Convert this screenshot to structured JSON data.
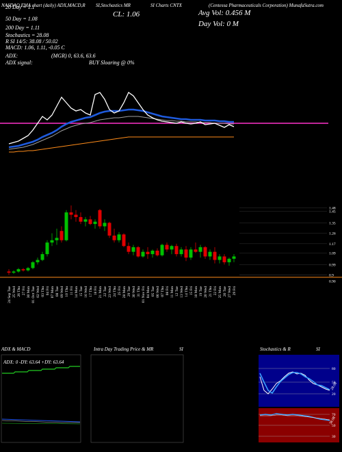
{
  "header": {
    "title_left": "NASDAQ EMA chart (daily) ADX,MACD,R",
    "title_mid": "SI,Stochastics MR",
    "title_mid2": "SI Charts CNTX",
    "title_right": "(Centessa Pharmaceuticals Corporation) MunafaSutra.com",
    "close": "CL: 1.06",
    "avg_vol": "Avg Vol: 0.456  M",
    "day_vol": "Day Vol: 0  M"
  },
  "stats": [
    "20 Day = 1.1",
    "50 Day = 1.08",
    "200 Day = 1.11",
    "Stochastics = 28.08",
    "R SI 14/5: 38.08 / 50.02",
    "MACD: 1.06, 1.11, -0.05 C",
    "ADX:",
    "(MGR) 0, 63.6, 63.6",
    "ADX  signal:",
    "BUY Sloaring @ 0%"
  ],
  "chart_data": [
    {
      "type": "candlestick",
      "categories": [
        "24 Sep Tue",
        "25 Wed",
        "26 Thu",
        "27 Fri",
        "30 Mon",
        "01 Oct Tue",
        "02 Wed",
        "03 Thu",
        "04 Fri",
        "07 Mon",
        "08 Tue",
        "09 Wed",
        "10 Thu",
        "11 Fri",
        "14 Mon",
        "15 Tue",
        "16 Wed",
        "17 Thu",
        "18 Fri",
        "21 Mon",
        "22 Tue",
        "23 Wed",
        "24 Thu",
        "25 Fri",
        "28 Mon",
        "29 Tue",
        "30 Wed",
        "31 Thu",
        "01 Nov Fri",
        "04 Mon",
        "05 Tue",
        "06 Wed",
        "07 Thu",
        "08 Fri",
        "11 Mon",
        "12 Tue",
        "13 Wed",
        "14 Thu",
        "15 Fri",
        "18 Mon",
        "19 Tue",
        "20 Wed",
        "21 Thu",
        "22 Fri",
        "25 Mon",
        "26 Tue",
        "27 Wed",
        "29 Fri"
      ],
      "open": [
        0.93,
        0.92,
        0.93,
        0.95,
        0.94,
        0.96,
        1.01,
        1.03,
        1.08,
        1.18,
        1.2,
        1.28,
        1.2,
        1.44,
        1.42,
        1.4,
        1.36,
        1.38,
        1.34,
        1.46,
        1.32,
        1.35,
        1.24,
        1.2,
        1.25,
        1.15,
        1.1,
        1.14,
        1.06,
        1.1,
        1.08,
        1.11,
        1.07,
        1.16,
        1.12,
        1.15,
        1.08,
        1.12,
        1.05,
        1.12,
        1.1,
        1.14,
        1.06,
        1.1,
        1.03,
        1.06,
        1.01,
        1.04
      ],
      "high": [
        0.95,
        0.94,
        0.96,
        0.96,
        0.97,
        1.02,
        1.05,
        1.1,
        1.2,
        1.26,
        1.3,
        1.32,
        1.46,
        1.5,
        1.46,
        1.44,
        1.4,
        1.41,
        1.38,
        1.47,
        1.38,
        1.36,
        1.3,
        1.27,
        1.26,
        1.18,
        1.16,
        1.15,
        1.12,
        1.14,
        1.12,
        1.13,
        1.17,
        1.18,
        1.16,
        1.17,
        1.14,
        1.15,
        1.14,
        1.18,
        1.16,
        1.15,
        1.12,
        1.14,
        1.08,
        1.08,
        1.05,
        1.08
      ],
      "low": [
        0.9,
        0.91,
        0.92,
        0.93,
        0.93,
        0.95,
        0.99,
        1.02,
        1.06,
        1.15,
        1.16,
        1.18,
        1.19,
        1.38,
        1.36,
        1.34,
        1.32,
        1.33,
        1.3,
        1.3,
        1.28,
        1.22,
        1.18,
        1.18,
        1.14,
        1.08,
        1.07,
        1.05,
        1.05,
        1.04,
        1.05,
        1.06,
        1.06,
        1.1,
        1.08,
        1.06,
        1.06,
        1.02,
        1.03,
        1.09,
        1.05,
        1.04,
        1.03,
        1.0,
        1.0,
        0.99,
        0.98,
        1.01
      ],
      "close": [
        0.92,
        0.93,
        0.95,
        0.94,
        0.96,
        1.01,
        1.03,
        1.08,
        1.18,
        1.2,
        1.22,
        1.2,
        1.44,
        1.42,
        1.4,
        1.36,
        1.38,
        1.34,
        1.36,
        1.32,
        1.35,
        1.24,
        1.2,
        1.25,
        1.15,
        1.1,
        1.14,
        1.06,
        1.1,
        1.08,
        1.11,
        1.07,
        1.16,
        1.12,
        1.15,
        1.08,
        1.12,
        1.05,
        1.12,
        1.1,
        1.14,
        1.06,
        1.1,
        1.03,
        1.06,
        1.01,
        1.04,
        1.06
      ],
      "up_color": "#00c000",
      "down_color": "#e00000",
      "ylim": [
        0.85,
        1.5
      ],
      "yticks": [
        1.48,
        1.45,
        1.35,
        1.26,
        1.17,
        1.09,
        0.99,
        0.9,
        {
          "value": 0.9,
          "label": "0.90"
        }
      ],
      "hline": {
        "value": 0.88,
        "color": "#ff8c1a"
      }
    },
    {
      "type": "line",
      "ylim": [
        0.5,
        1.6
      ],
      "series": [
        {
          "color": "#a0a0a0",
          "values": [
            0.62,
            0.63,
            0.64,
            0.65,
            0.67,
            0.69,
            0.72,
            0.75,
            0.78,
            0.81,
            0.85,
            0.89,
            0.92,
            0.95,
            0.97,
            0.99,
            1.0,
            1.01,
            1.03,
            1.05,
            1.06,
            1.07,
            1.08,
            1.08,
            1.09,
            1.1,
            1.1,
            1.1,
            1.09,
            1.08,
            1.07,
            1.06,
            1.05,
            1.04,
            1.04,
            1.03,
            1.03,
            1.02,
            1.02,
            1.02,
            1.01,
            1.01,
            1.01,
            1.0,
            1.0,
            1.0,
            0.99,
            0.99
          ]
        },
        {
          "color": "#ff8c1a",
          "values": [
            0.58,
            0.58,
            0.59,
            0.59,
            0.6,
            0.6,
            0.61,
            0.62,
            0.63,
            0.64,
            0.65,
            0.66,
            0.67,
            0.68,
            0.69,
            0.7,
            0.71,
            0.72,
            0.73,
            0.74,
            0.75,
            0.76,
            0.77,
            0.78,
            0.79,
            0.8,
            0.8,
            0.8,
            0.8,
            0.8,
            0.8,
            0.8,
            0.8,
            0.8,
            0.8,
            0.8,
            0.8,
            0.8,
            0.8,
            0.8,
            0.8,
            0.8,
            0.8,
            0.8,
            0.8,
            0.8,
            0.8,
            0.8
          ]
        },
        {
          "color": "#1e5adc",
          "values": [
            0.65,
            0.66,
            0.67,
            0.69,
            0.71,
            0.73,
            0.76,
            0.8,
            0.83,
            0.86,
            0.9,
            0.95,
            0.99,
            1.02,
            1.04,
            1.06,
            1.08,
            1.09,
            1.12,
            1.15,
            1.17,
            1.18,
            1.18,
            1.18,
            1.19,
            1.2,
            1.2,
            1.19,
            1.18,
            1.16,
            1.14,
            1.12,
            1.1,
            1.09,
            1.08,
            1.07,
            1.06,
            1.06,
            1.05,
            1.05,
            1.05,
            1.04,
            1.04,
            1.04,
            1.03,
            1.03,
            1.02,
            1.02
          ]
        },
        {
          "color": "#ffffff",
          "values": [
            0.7,
            0.72,
            0.74,
            0.78,
            0.82,
            0.9,
            1.0,
            1.1,
            1.05,
            1.12,
            1.25,
            1.38,
            1.3,
            1.22,
            1.18,
            1.2,
            1.15,
            1.12,
            1.42,
            1.45,
            1.35,
            1.2,
            1.15,
            1.18,
            1.3,
            1.45,
            1.4,
            1.3,
            1.2,
            1.12,
            1.08,
            1.05,
            1.03,
            1.02,
            1.01,
            1.0,
            1.02,
            1.0,
            0.99,
            1.0,
            1.02,
            0.98,
            0.99,
            1.0,
            0.97,
            0.94,
            0.98,
            0.95
          ]
        }
      ],
      "hline": {
        "value": 1.0,
        "color": "#ff33cc"
      }
    }
  ],
  "panels": {
    "adx": {
      "title": "ADX  & MACD",
      "readout": "ADX: 0  -DY: 63.64  +DY: 63.64"
    },
    "intraday": {
      "title": "Intra  Day Trading Price  & MR",
      "title2": "SI"
    },
    "stoch": {
      "title": "Stochastics & R",
      "title2": "SI",
      "ticks_top": [
        "80",
        "50",
        "20"
      ],
      "value_top": "28.08",
      "ticks_bottom": [
        "70",
        "50",
        "30"
      ],
      "value_bottom": "38.08"
    }
  }
}
